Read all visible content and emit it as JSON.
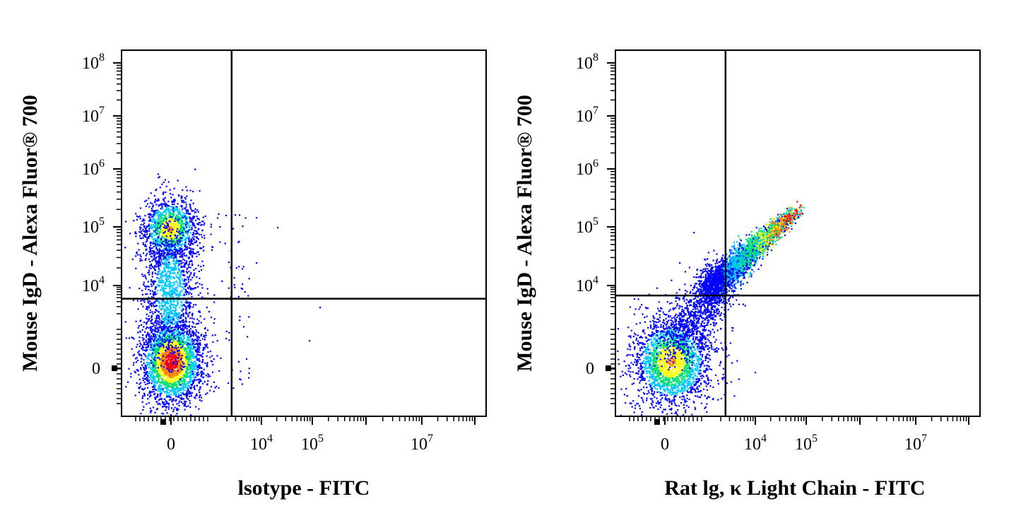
{
  "chart_data": [
    {
      "type": "scatter",
      "title": "",
      "xlabel": "lsotype - FITC",
      "ylabel": "Mouse IgD - Alexa Fluor® 700",
      "x_scale": "biexponential",
      "y_scale": "biexponential",
      "x_ticks": [
        {
          "base": "0",
          "exp": ""
        },
        {
          "base": "10",
          "exp": "4"
        },
        {
          "base": "10",
          "exp": "5"
        },
        {
          "base": "10",
          "exp": "7"
        }
      ],
      "y_ticks": [
        {
          "base": "0",
          "exp": ""
        },
        {
          "base": "10",
          "exp": "4"
        },
        {
          "base": "10",
          "exp": "5"
        },
        {
          "base": "10",
          "exp": "6"
        },
        {
          "base": "10",
          "exp": "7"
        },
        {
          "base": "10",
          "exp": "8"
        }
      ],
      "quadrant_gate": {
        "x": 1500,
        "y": 4000
      },
      "grid": false,
      "populations": [
        {
          "name": "",
          "center": {
            "x": 0,
            "y": 200
          },
          "relative_density": 1.0
        },
        {
          "name": "",
          "center": {
            "x": 0,
            "y": 80000
          },
          "relative_density": 0.55
        }
      ],
      "color_scale": [
        "#0000ff",
        "#00c8ff",
        "#00e070",
        "#ffff00",
        "#ff8000",
        "#ff0000"
      ]
    },
    {
      "type": "scatter",
      "title": "",
      "xlabel": "Rat lg, κ Light Chain - FITC",
      "ylabel": "Mouse IgD - Alexa Fluor® 700",
      "x_scale": "biexponential",
      "y_scale": "biexponential",
      "x_ticks": [
        {
          "base": "0",
          "exp": ""
        },
        {
          "base": "10",
          "exp": "4"
        },
        {
          "base": "10",
          "exp": "5"
        },
        {
          "base": "10",
          "exp": "7"
        }
      ],
      "y_ticks": [
        {
          "base": "0",
          "exp": ""
        },
        {
          "base": "10",
          "exp": "4"
        },
        {
          "base": "10",
          "exp": "5"
        },
        {
          "base": "10",
          "exp": "6"
        },
        {
          "base": "10",
          "exp": "7"
        },
        {
          "base": "10",
          "exp": "8"
        }
      ],
      "quadrant_gate": {
        "x": 1500,
        "y": 5000
      },
      "grid": false,
      "populations": [
        {
          "name": "",
          "center": {
            "x": 0,
            "y": 200
          },
          "relative_density": 0.6
        },
        {
          "name": "",
          "diagonal_from": {
            "x": 1500,
            "y": 5000
          },
          "diagonal_to": {
            "x": 80000,
            "y": 200000
          },
          "relative_density": 1.0
        }
      ],
      "color_scale": [
        "#0000ff",
        "#00c8ff",
        "#00e070",
        "#ffff00",
        "#ff8000",
        "#ff0000"
      ]
    }
  ]
}
